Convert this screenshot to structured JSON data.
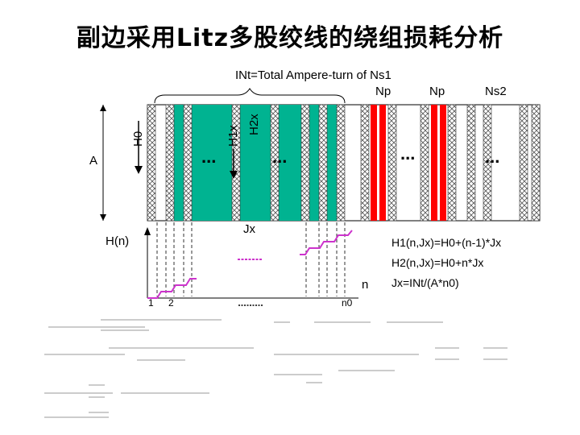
{
  "title": "副边采用Litz多股绞线的绕组损耗分析",
  "top_label": "INt=Total Ampere-turn of Ns1",
  "column_labels": [
    "Np",
    "Np",
    "Ns2"
  ],
  "h0_label": "H0",
  "h1_label": "H1x",
  "h2_label": "H2x",
  "a_label": "A",
  "hn_label": "H(n)",
  "jx_label": "Jx",
  "n_label": "n",
  "tick_1": "1",
  "tick_2": "2",
  "tick_n0": "n0",
  "ellipsis": "...",
  "equations": [
    "H1(n,Jx)=H0+(n-1)*Jx",
    "H2(n,Jx)=H0+n*Jx",
    "Jx=INt/(A*n0)"
  ],
  "colors": {
    "core_fill": "#00b391",
    "primary_red": "#ff0000",
    "graph_line": "#cc33cc",
    "hatch_stroke": "#555555"
  }
}
